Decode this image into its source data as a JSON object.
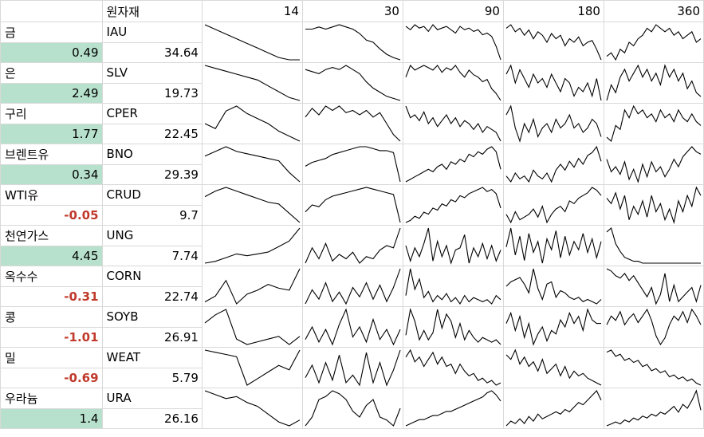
{
  "header": {
    "title": "원자재",
    "periods": [
      "14",
      "30",
      "90",
      "180",
      "360"
    ]
  },
  "rows": [
    {
      "name": "금",
      "ticker": "IAU",
      "change": "0.49",
      "price": "34.64",
      "positive": true,
      "spark": {
        "14": [
          10,
          12,
          14,
          16,
          18,
          20,
          22,
          24,
          25,
          25
        ],
        "30": [
          12,
          12,
          10,
          12,
          10,
          8,
          10,
          12,
          16,
          22,
          24,
          30,
          35,
          38,
          40
        ],
        "90": [
          10,
          12,
          9,
          11,
          10,
          13,
          9,
          12,
          11,
          10,
          12,
          14,
          10,
          12,
          11,
          13,
          12,
          15,
          14,
          16,
          22,
          30
        ],
        "180": [
          12,
          10,
          14,
          12,
          16,
          13,
          18,
          14,
          16,
          20,
          15,
          18,
          16,
          22,
          18,
          20,
          17,
          22,
          20,
          19,
          24,
          30
        ],
        "360": [
          28,
          26,
          30,
          24,
          26,
          20,
          22,
          18,
          16,
          12,
          14,
          10,
          12,
          14,
          12,
          16,
          14,
          18,
          16,
          14,
          20,
          18
        ]
      }
    },
    {
      "name": "은",
      "ticker": "SLV",
      "change": "2.49",
      "price": "19.73",
      "positive": true,
      "spark": {
        "14": [
          8,
          10,
          12,
          14,
          16,
          18,
          22,
          26,
          30,
          32
        ],
        "30": [
          10,
          12,
          14,
          10,
          8,
          10,
          6,
          10,
          14,
          22,
          28,
          32,
          36,
          38,
          40
        ],
        "90": [
          20,
          10,
          14,
          12,
          10,
          12,
          14,
          10,
          16,
          12,
          14,
          10,
          16,
          20,
          14,
          18,
          20,
          24,
          22,
          30,
          34,
          40
        ],
        "180": [
          14,
          10,
          18,
          12,
          16,
          20,
          14,
          18,
          16,
          20,
          14,
          18,
          22,
          16,
          18,
          24,
          20,
          22,
          18,
          24,
          16,
          26
        ],
        "360": [
          30,
          22,
          26,
          18,
          14,
          20,
          16,
          12,
          18,
          14,
          20,
          16,
          22,
          12,
          18,
          14,
          20,
          16,
          24,
          20,
          26,
          28
        ]
      }
    },
    {
      "name": "구리",
      "ticker": "CPER",
      "change": "1.77",
      "price": "22.45",
      "positive": true,
      "spark": {
        "14": [
          22,
          26,
          12,
          8,
          14,
          18,
          22,
          28,
          32,
          36
        ],
        "30": [
          16,
          8,
          14,
          6,
          10,
          6,
          12,
          10,
          14,
          10,
          16,
          12,
          22,
          32,
          38
        ],
        "90": [
          10,
          18,
          16,
          20,
          14,
          22,
          18,
          24,
          20,
          16,
          22,
          18,
          24,
          20,
          22,
          26,
          22,
          28,
          24,
          26,
          28,
          34
        ],
        "180": [
          14,
          10,
          20,
          26,
          18,
          22,
          16,
          24,
          20,
          18,
          22,
          16,
          20,
          18,
          14,
          20,
          18,
          22,
          20,
          16,
          18,
          24
        ],
        "360": [
          26,
          28,
          20,
          22,
          12,
          16,
          10,
          14,
          12,
          16,
          14,
          18,
          12,
          16,
          14,
          18,
          12,
          16,
          18,
          14,
          18,
          20
        ]
      }
    },
    {
      "name": "브렌트유",
      "ticker": "BNO",
      "change": "0.34",
      "price": "29.39",
      "positive": true,
      "spark": {
        "14": [
          14,
          10,
          6,
          10,
          12,
          14,
          16,
          18,
          28,
          36
        ],
        "30": [
          26,
          22,
          20,
          18,
          14,
          12,
          10,
          8,
          6,
          6,
          8,
          10,
          10,
          12,
          42
        ],
        "90": [
          36,
          34,
          32,
          30,
          28,
          26,
          28,
          24,
          22,
          26,
          20,
          22,
          18,
          20,
          14,
          16,
          12,
          14,
          10,
          8,
          12,
          26
        ],
        "180": [
          30,
          34,
          28,
          32,
          30,
          34,
          26,
          30,
          32,
          28,
          34,
          26,
          22,
          26,
          20,
          24,
          18,
          22,
          16,
          14,
          10,
          20
        ],
        "360": [
          20,
          30,
          26,
          32,
          22,
          36,
          28,
          38,
          24,
          34,
          22,
          30,
          26,
          34,
          28,
          20,
          26,
          18,
          14,
          10,
          14,
          16
        ]
      }
    },
    {
      "name": "WTI유",
      "ticker": "CRUD",
      "change": "-0.05",
      "price": "9.7",
      "positive": false,
      "spark": {
        "14": [
          16,
          10,
          6,
          10,
          14,
          18,
          22,
          24,
          34,
          44
        ],
        "30": [
          32,
          24,
          26,
          18,
          14,
          12,
          10,
          8,
          6,
          4,
          6,
          8,
          10,
          12,
          44
        ],
        "90": [
          38,
          36,
          32,
          34,
          28,
          30,
          24,
          26,
          20,
          22,
          16,
          18,
          12,
          14,
          10,
          8,
          6,
          4,
          8,
          6,
          10,
          24
        ],
        "180": [
          30,
          36,
          28,
          34,
          32,
          30,
          26,
          32,
          24,
          36,
          30,
          26,
          24,
          28,
          20,
          22,
          18,
          16,
          14,
          10,
          12,
          16
        ],
        "360": [
          18,
          22,
          14,
          26,
          16,
          34,
          24,
          30,
          20,
          32,
          16,
          28,
          22,
          34,
          26,
          36,
          20,
          28,
          16,
          24,
          10,
          16
        ]
      }
    },
    {
      "name": "천연가스",
      "ticker": "UNG",
      "change": "4.45",
      "price": "7.74",
      "positive": true,
      "spark": {
        "14": [
          40,
          38,
          34,
          30,
          32,
          30,
          28,
          22,
          16,
          2
        ],
        "30": [
          34,
          20,
          30,
          16,
          32,
          26,
          30,
          24,
          34,
          28,
          30,
          22,
          18,
          20,
          2
        ],
        "90": [
          20,
          34,
          22,
          30,
          18,
          4,
          34,
          16,
          30,
          20,
          36,
          24,
          22,
          10,
          36,
          22,
          30,
          18,
          32,
          20,
          34,
          24
        ],
        "180": [
          24,
          10,
          30,
          16,
          34,
          14,
          28,
          20,
          36,
          18,
          26,
          12,
          32,
          16,
          30,
          20,
          26,
          14,
          28,
          18,
          32,
          20
        ],
        "360": [
          8,
          4,
          20,
          28,
          34,
          36,
          38,
          38,
          40,
          40,
          40,
          40,
          40,
          40,
          40,
          40,
          40,
          40,
          40,
          40,
          40,
          40
        ]
      }
    },
    {
      "name": "옥수수",
      "ticker": "CORN",
      "change": "-0.31",
      "price": "22.74",
      "positive": false,
      "spark": {
        "14": [
          38,
          32,
          16,
          40,
          30,
          26,
          20,
          24,
          26,
          4
        ],
        "30": [
          36,
          24,
          32,
          18,
          34,
          26,
          36,
          22,
          30,
          18,
          32,
          20,
          34,
          22,
          6
        ],
        "90": [
          30,
          4,
          24,
          14,
          32,
          26,
          36,
          30,
          34,
          28,
          36,
          32,
          38,
          30,
          36,
          32,
          34,
          36,
          34,
          38,
          30,
          34
        ],
        "180": [
          24,
          20,
          18,
          16,
          22,
          30,
          8,
          26,
          36,
          22,
          20,
          34,
          28,
          30,
          34,
          36,
          34,
          38,
          36,
          38,
          40,
          36
        ],
        "360": [
          6,
          8,
          12,
          14,
          10,
          16,
          12,
          18,
          24,
          30,
          22,
          36,
          28,
          10,
          34,
          20,
          34,
          30,
          26,
          22,
          34,
          20
        ]
      }
    },
    {
      "name": "콩",
      "ticker": "SOYB",
      "change": "-1.01",
      "price": "26.91",
      "positive": false,
      "spark": {
        "14": [
          24,
          18,
          14,
          36,
          40,
          38,
          36,
          34,
          40,
          34
        ],
        "30": [
          34,
          24,
          36,
          26,
          38,
          22,
          10,
          32,
          24,
          36,
          18,
          34,
          26,
          38,
          26
        ],
        "90": [
          32,
          10,
          20,
          36,
          28,
          36,
          30,
          10,
          26,
          14,
          20,
          34,
          22,
          36,
          28,
          34,
          38,
          34,
          36,
          38,
          36,
          40
        ],
        "180": [
          24,
          18,
          28,
          20,
          32,
          24,
          36,
          30,
          26,
          34,
          28,
          30,
          22,
          26,
          18,
          24,
          20,
          28,
          16,
          22,
          24,
          24
        ],
        "360": [
          22,
          14,
          18,
          10,
          22,
          16,
          12,
          20,
          14,
          8,
          18,
          32,
          40,
          34,
          22,
          14,
          18,
          10,
          20,
          8,
          14,
          22
        ]
      }
    },
    {
      "name": "밀",
      "ticker": "WEAT",
      "change": "-0.69",
      "price": "5.79",
      "positive": false,
      "spark": {
        "14": [
          8,
          10,
          12,
          14,
          40,
          34,
          28,
          22,
          26,
          8
        ],
        "30": [
          30,
          20,
          34,
          18,
          32,
          12,
          34,
          28,
          36,
          10,
          34,
          18,
          36,
          24,
          8
        ],
        "90": [
          14,
          8,
          18,
          14,
          22,
          16,
          10,
          20,
          14,
          22,
          20,
          28,
          20,
          26,
          30,
          28,
          34,
          32,
          36,
          34,
          38,
          36
        ],
        "180": [
          14,
          18,
          10,
          22,
          16,
          24,
          20,
          28,
          18,
          30,
          26,
          22,
          32,
          24,
          34,
          28,
          32,
          30,
          34,
          36,
          38,
          40
        ],
        "360": [
          8,
          6,
          12,
          10,
          16,
          14,
          18,
          16,
          22,
          20,
          26,
          24,
          28,
          26,
          32,
          30,
          34,
          32,
          36,
          34,
          38,
          40
        ]
      }
    },
    {
      "name": "우라늄",
      "ticker": "URA",
      "change": "1.4",
      "price": "26.16",
      "positive": true,
      "spark": {
        "14": [
          4,
          8,
          12,
          10,
          16,
          20,
          28,
          36,
          40,
          34
        ],
        "30": [
          40,
          34,
          22,
          20,
          16,
          18,
          22,
          30,
          34,
          26,
          22,
          34,
          36,
          40,
          28
        ],
        "90": [
          40,
          38,
          36,
          34,
          34,
          32,
          30,
          30,
          28,
          26,
          26,
          24,
          22,
          20,
          18,
          16,
          14,
          12,
          8,
          6,
          10,
          16
        ],
        "180": [
          40,
          36,
          38,
          34,
          38,
          32,
          36,
          30,
          34,
          32,
          30,
          28,
          30,
          26,
          28,
          24,
          20,
          22,
          18,
          14,
          10,
          18
        ],
        "360": [
          40,
          38,
          36,
          38,
          34,
          36,
          32,
          34,
          30,
          32,
          28,
          30,
          26,
          28,
          24,
          20,
          26,
          18,
          22,
          14,
          4,
          24
        ]
      }
    }
  ]
}
